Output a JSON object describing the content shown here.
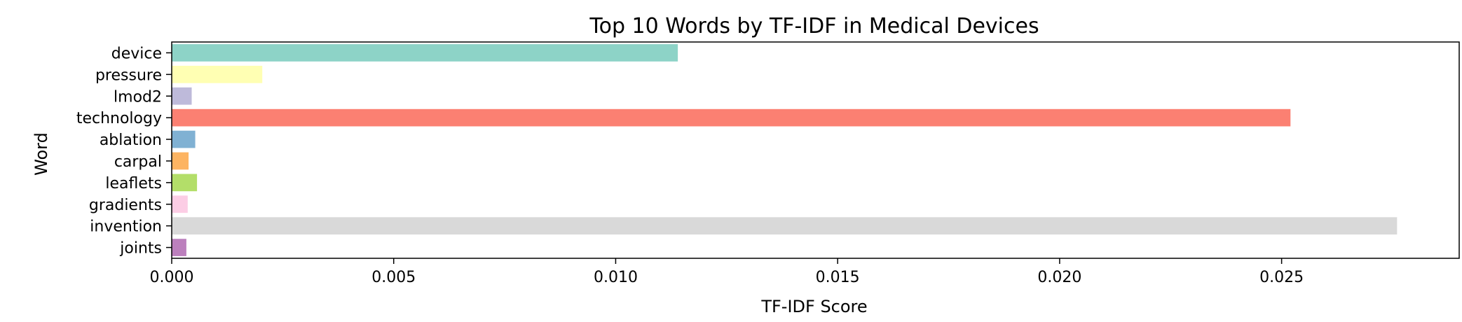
{
  "chart_data": {
    "type": "bar",
    "orientation": "horizontal",
    "title": "Top 10 Words by TF-IDF in Medical Devices",
    "xlabel": "TF-IDF Score",
    "ylabel": "Word",
    "categories": [
      "device",
      "pressure",
      "lmod2",
      "technology",
      "ablation",
      "carpal",
      "leaflets",
      "gradients",
      "invention",
      "joints"
    ],
    "values": [
      0.0114,
      0.00204,
      0.00045,
      0.0252,
      0.00053,
      0.00038,
      0.00057,
      0.00036,
      0.0276,
      0.00033
    ],
    "colors": [
      "#8dd3c7",
      "#ffffb3",
      "#bebada",
      "#fb8072",
      "#80b1d3",
      "#fdb462",
      "#b3de69",
      "#fccde5",
      "#d9d9d9",
      "#bc80bd"
    ],
    "xlim": [
      0,
      0.029
    ],
    "xticks": [
      0.0,
      0.005,
      0.01,
      0.015,
      0.02,
      0.025
    ],
    "xtick_labels": [
      "0.000",
      "0.005",
      "0.010",
      "0.015",
      "0.020",
      "0.025"
    ],
    "grid": false,
    "legend": "none"
  }
}
